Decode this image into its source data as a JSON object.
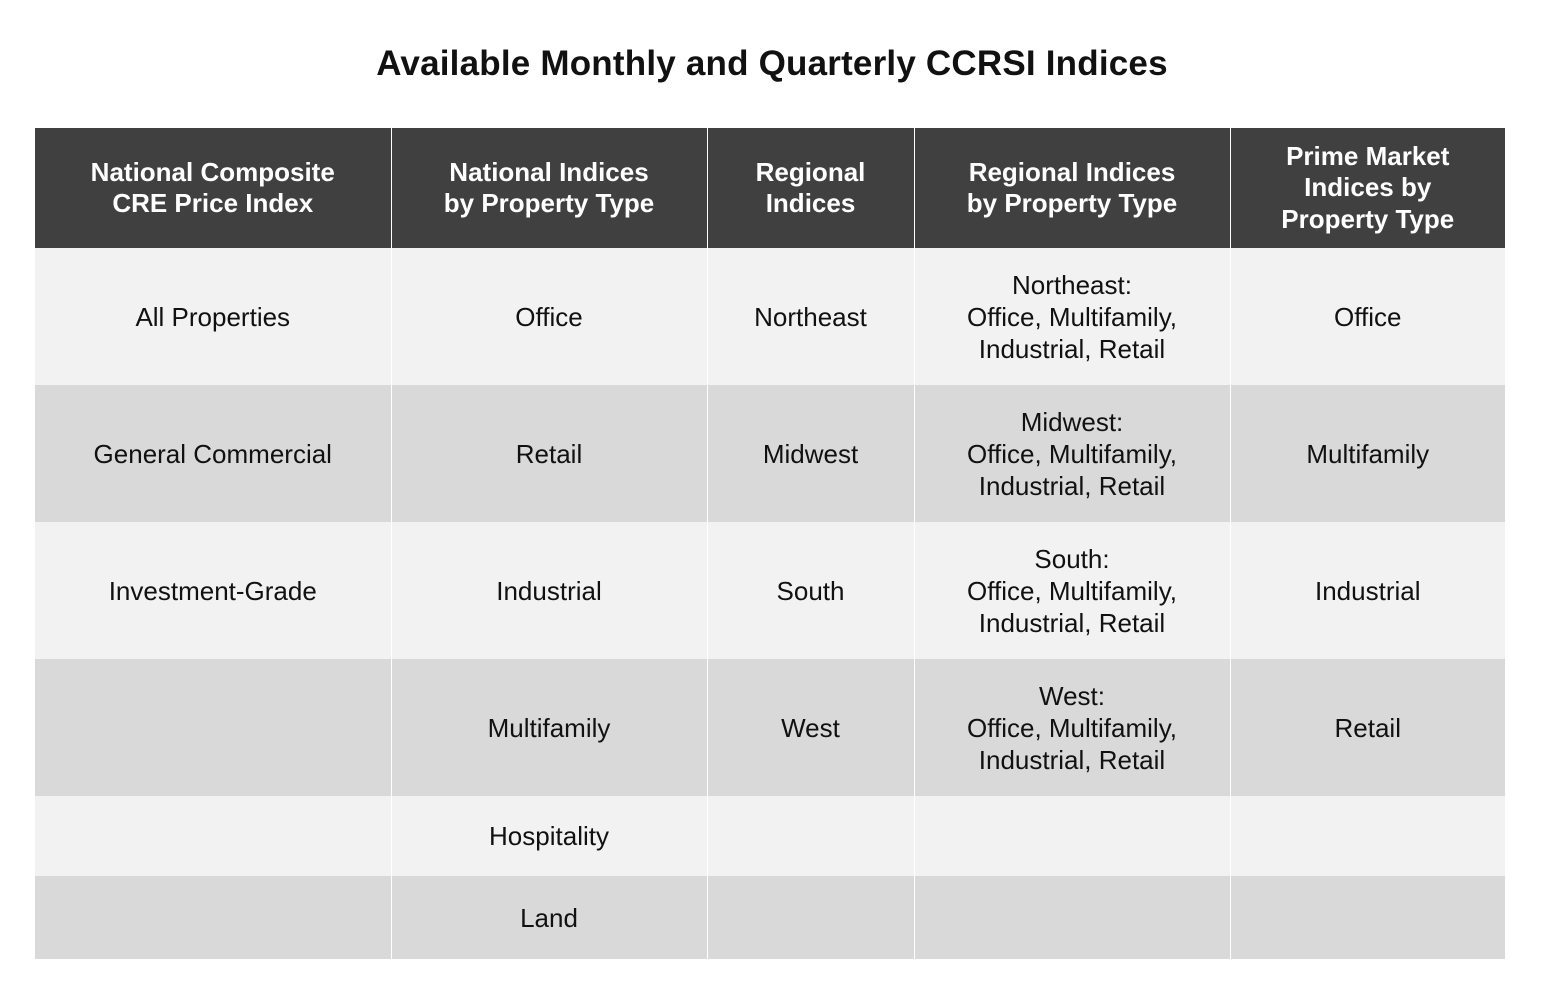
{
  "title": "Available Monthly and Quarterly CCRSI Indices",
  "columns": [
    "National Composite CRE Price Index",
    "National Indices by Property Type",
    "Regional Indices",
    "Regional Indices by Property Type",
    "Prime Market Indices by Property Type"
  ],
  "header_lines": {
    "c1": [
      "National Composite",
      "CRE Price Index"
    ],
    "c2": [
      "National Indices",
      "by Property Type"
    ],
    "c3": [
      "Regional",
      "Indices"
    ],
    "c4": [
      "Regional Indices",
      "by Property Type"
    ],
    "c5": [
      "Prime Market",
      "Indices by",
      "Property Type"
    ]
  },
  "rows": [
    {
      "national_composite": "All Properties",
      "national_by_type": "Office",
      "regional": "Northeast",
      "regional_by_type": [
        "Northeast:",
        "Office, Multifamily,",
        "Industrial, Retail"
      ],
      "prime_market": "Office"
    },
    {
      "national_composite": "General Commercial",
      "national_by_type": "Retail",
      "regional": "Midwest",
      "regional_by_type": [
        "Midwest:",
        "Office, Multifamily,",
        "Industrial, Retail"
      ],
      "prime_market": "Multifamily"
    },
    {
      "national_composite": "Investment-Grade",
      "national_by_type": "Industrial",
      "regional": "South",
      "regional_by_type": [
        "South:",
        "Office, Multifamily,",
        "Industrial, Retail"
      ],
      "prime_market": "Industrial"
    },
    {
      "national_composite": "",
      "national_by_type": "Multifamily",
      "regional": "West",
      "regional_by_type": [
        "West:",
        "Office, Multifamily,",
        "Industrial, Retail"
      ],
      "prime_market": "Retail"
    },
    {
      "national_composite": "",
      "national_by_type": "Hospitality",
      "regional": "",
      "regional_by_type": [],
      "prime_market": ""
    },
    {
      "national_composite": "",
      "national_by_type": "Land",
      "regional": "",
      "regional_by_type": [],
      "prime_market": ""
    }
  ]
}
